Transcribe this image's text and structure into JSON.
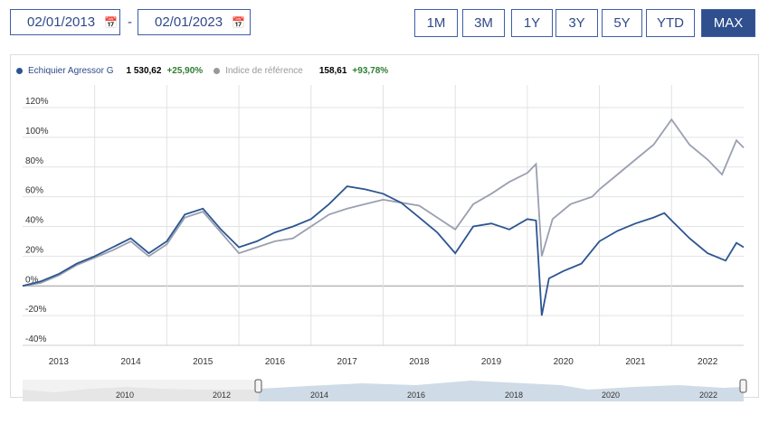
{
  "date_range": {
    "start": "02/01/2013",
    "end": "02/01/2023",
    "separator": "-"
  },
  "range_buttons": [
    "1M",
    "3M",
    "1Y",
    "3Y",
    "5Y",
    "YTD",
    "MAX"
  ],
  "active_range": "MAX",
  "legend": [
    {
      "name": "Echiquier Agressor G",
      "value": "1 530,62",
      "change": "+25,90%",
      "color": "#2c5591"
    },
    {
      "name": "Indice de référence",
      "value": "158,61",
      "change": "+93,78%",
      "color": "#9aa0b0"
    }
  ],
  "chart_data": {
    "type": "line",
    "ylim": [
      -40,
      120
    ],
    "yticks": [
      "120%",
      "100%",
      "80%",
      "60%",
      "40%",
      "20%",
      "0%",
      "-20%",
      "-40%"
    ],
    "ytick_values": [
      120,
      100,
      80,
      60,
      40,
      20,
      0,
      -20,
      -40
    ],
    "xlim": [
      2013,
      2023
    ],
    "xticks": [
      "2013",
      "2014",
      "2015",
      "2016",
      "2017",
      "2018",
      "2019",
      "2020",
      "2021",
      "2022"
    ],
    "grid": true,
    "series": [
      {
        "name": "Echiquier Agressor G",
        "color": "#2c5591",
        "x": [
          2013,
          2013.25,
          2013.5,
          2013.75,
          2014,
          2014.25,
          2014.5,
          2014.75,
          2015,
          2015.25,
          2015.5,
          2015.75,
          2016,
          2016.25,
          2016.5,
          2016.75,
          2017,
          2017.25,
          2017.5,
          2017.75,
          2018,
          2018.25,
          2018.5,
          2018.75,
          2019,
          2019.25,
          2019.5,
          2019.75,
          2020,
          2020.12,
          2020.2,
          2020.3,
          2020.5,
          2020.75,
          2020.9,
          2021,
          2021.25,
          2021.5,
          2021.75,
          2021.9,
          2022,
          2022.25,
          2022.5,
          2022.75,
          2022.9,
          2023
        ],
        "y": [
          0,
          3,
          8,
          15,
          20,
          26,
          32,
          22,
          30,
          48,
          52,
          38,
          26,
          30,
          36,
          40,
          45,
          55,
          67,
          65,
          62,
          56,
          46,
          36,
          22,
          40,
          42,
          38,
          45,
          44,
          -20,
          5,
          10,
          15,
          24,
          30,
          37,
          42,
          46,
          49,
          44,
          32,
          22,
          17,
          29,
          26
        ]
      },
      {
        "name": "Indice de référence",
        "color": "#9aa0b0",
        "x": [
          2013,
          2013.25,
          2013.5,
          2013.75,
          2014,
          2014.25,
          2014.5,
          2014.75,
          2015,
          2015.25,
          2015.5,
          2015.75,
          2016,
          2016.25,
          2016.5,
          2016.75,
          2017,
          2017.25,
          2017.5,
          2017.75,
          2018,
          2018.25,
          2018.5,
          2018.75,
          2019,
          2019.25,
          2019.5,
          2019.75,
          2020,
          2020.12,
          2020.2,
          2020.35,
          2020.6,
          2020.9,
          2021,
          2021.25,
          2021.5,
          2021.75,
          2022,
          2022.25,
          2022.5,
          2022.7,
          2022.9,
          2023
        ],
        "y": [
          0,
          2,
          7,
          14,
          19,
          24,
          30,
          20,
          28,
          46,
          50,
          36,
          22,
          26,
          30,
          32,
          40,
          48,
          52,
          55,
          58,
          56,
          54,
          46,
          38,
          55,
          62,
          70,
          76,
          82,
          20,
          45,
          55,
          60,
          65,
          75,
          85,
          95,
          112,
          95,
          85,
          75,
          98,
          93
        ]
      }
    ]
  },
  "navigator": {
    "labels": [
      "2010",
      "2012",
      "2014",
      "2016",
      "2018",
      "2020",
      "2022"
    ]
  }
}
